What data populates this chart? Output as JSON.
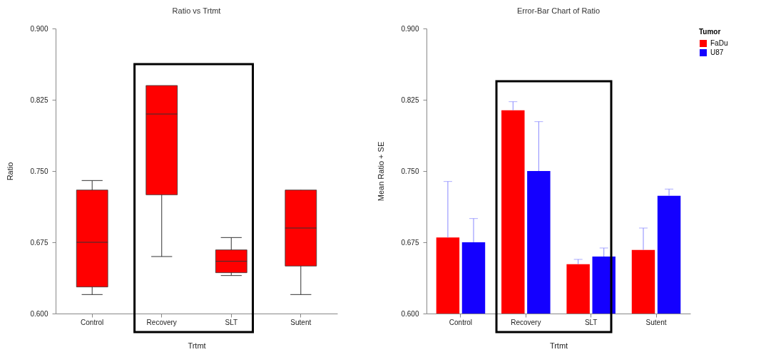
{
  "chart_data": [
    {
      "type": "box",
      "title": "Ratio vs Trtmt",
      "xlabel": "Trtmt",
      "ylabel": "Ratio",
      "categories": [
        "Control",
        "Recovery",
        "SLT",
        "Sutent"
      ],
      "color": "#ff0000",
      "boxes": [
        {
          "low": 0.62,
          "q1": 0.628,
          "median": 0.675,
          "q3": 0.73,
          "high": 0.74
        },
        {
          "low": 0.66,
          "q1": 0.725,
          "median": 0.81,
          "q3": 0.84,
          "high": 0.84
        },
        {
          "low": 0.64,
          "q1": 0.643,
          "median": 0.655,
          "q3": 0.667,
          "high": 0.68
        },
        {
          "low": 0.62,
          "q1": 0.65,
          "median": 0.69,
          "q3": 0.73,
          "high": 0.73
        }
      ],
      "ylim": [
        0.6,
        0.9
      ],
      "yticks": [
        {
          "value": 0.6,
          "label": "0.600"
        },
        {
          "value": 0.675,
          "label": "0.675"
        },
        {
          "value": 0.75,
          "label": "0.750"
        },
        {
          "value": 0.825,
          "label": "0.825"
        },
        {
          "value": 0.9,
          "label": "0.900"
        }
      ]
    },
    {
      "type": "bar",
      "title": "Error-Bar Chart of Ratio",
      "xlabel": "Trtmt",
      "ylabel": "Mean Ratio + SE",
      "legend_title": "Tumor",
      "legend": "right",
      "categories": [
        "Control",
        "Recovery",
        "SLT",
        "Sutent"
      ],
      "series": [
        {
          "name": "FaDu",
          "color": "#ff0000",
          "values": [
            0.68,
            0.814,
            0.652,
            0.667
          ],
          "errors": [
            [
              0.68,
              0.739
            ],
            [
              0.814,
              0.823
            ],
            [
              0.652,
              0.657
            ],
            [
              0.667,
              0.69
            ]
          ]
        },
        {
          "name": "U87",
          "color": "#1400ff",
          "values": [
            0.675,
            0.75,
            0.66,
            0.724
          ],
          "errors": [
            [
              0.675,
              0.7
            ],
            [
              0.75,
              0.802
            ],
            [
              0.66,
              0.669
            ],
            [
              0.724,
              0.731
            ]
          ]
        }
      ],
      "ylim": [
        0.6,
        0.9
      ],
      "yticks": [
        {
          "value": 0.6,
          "label": "0.600"
        },
        {
          "value": 0.675,
          "label": "0.675"
        },
        {
          "value": 0.75,
          "label": "0.750"
        },
        {
          "value": 0.825,
          "label": "0.825"
        },
        {
          "value": 0.9,
          "label": "0.900"
        }
      ]
    }
  ]
}
